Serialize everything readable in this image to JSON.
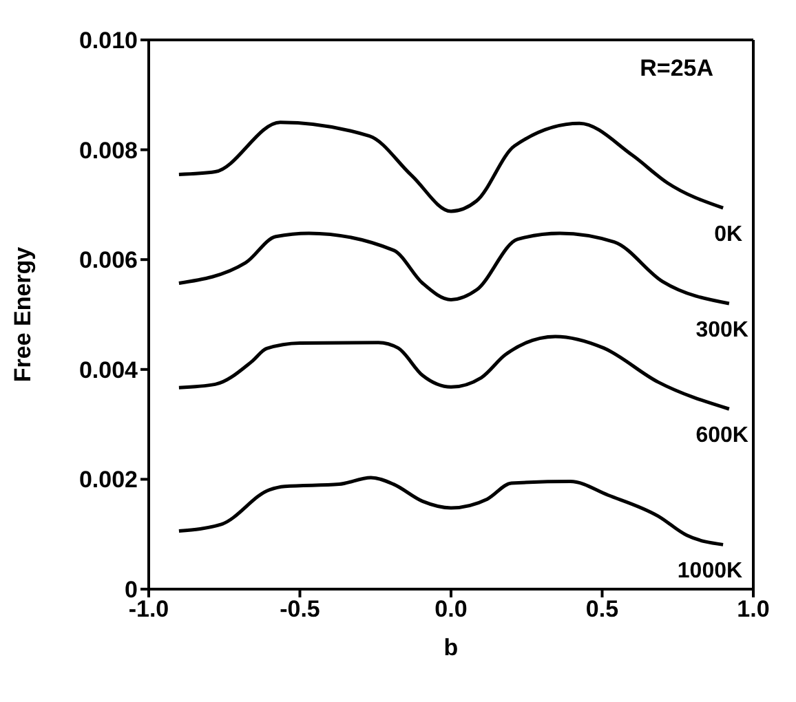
{
  "chart_data": {
    "type": "line",
    "xlabel": "b",
    "ylabel": "Free Energy",
    "annotations": [
      "R=25A"
    ],
    "xlim": [
      -1.0,
      1.0
    ],
    "xticks": [
      {
        "value": -1.0,
        "label": "-1.0"
      },
      {
        "value": -0.5,
        "label": "-0.5"
      },
      {
        "value": 0,
        "label": "0.0"
      },
      {
        "value": 0.5,
        "label": "0.5"
      },
      {
        "value": 1.0,
        "label": "1.0"
      }
    ],
    "ylim": [
      0,
      0.01
    ],
    "yticks": [
      0,
      {
        "value": 0.002,
        "label": "0.002"
      },
      {
        "value": 0.004,
        "label": "0.004"
      },
      {
        "value": 0.006,
        "label": "0.006"
      },
      {
        "value": 0.008,
        "label": "0.008"
      },
      {
        "value": 0.01,
        "label": "0.010"
      }
    ],
    "legend": false,
    "marker": "none",
    "line_style": "solid",
    "series": [
      {
        "name": "0K",
        "color": "#000000",
        "x": [
          -0.9,
          -0.78,
          -0.565,
          -0.27,
          -0.13,
          0,
          0.085,
          0.21,
          0.425,
          0.6,
          0.715,
          0.9
        ],
        "values": [
          0.00755,
          0.0076,
          0.0085,
          0.00825,
          0.00753,
          0.00688,
          0.00707,
          0.00807,
          0.00848,
          0.0079,
          0.0074,
          0.00694
        ]
      },
      {
        "name": "300K",
        "color": "#000000",
        "x": [
          -0.9,
          -0.68,
          -0.58,
          -0.47,
          -0.19,
          -0.094,
          0,
          0.085,
          0.22,
          0.36,
          0.54,
          0.7,
          0.92
        ],
        "values": [
          0.00557,
          0.00594,
          0.00642,
          0.00648,
          0.00617,
          0.00557,
          0.00527,
          0.00545,
          0.00637,
          0.00648,
          0.00632,
          0.0056,
          0.0052
        ]
      },
      {
        "name": "600K",
        "color": "#000000",
        "x": [
          -0.9,
          -0.78,
          -0.66,
          -0.61,
          -0.5,
          -0.24,
          -0.175,
          -0.094,
          0,
          0.1,
          0.18,
          0.345,
          0.505,
          0.685,
          0.92
        ],
        "values": [
          0.00367,
          0.00373,
          0.00414,
          0.00438,
          0.00448,
          0.00449,
          0.00439,
          0.00389,
          0.00368,
          0.00385,
          0.00427,
          0.0046,
          0.00439,
          0.00377,
          0.00328
        ]
      },
      {
        "name": "1000K",
        "color": "#000000",
        "x": [
          -0.9,
          -0.76,
          -0.6,
          -0.55,
          -0.37,
          -0.265,
          -0.19,
          -0.094,
          0,
          0.12,
          0.2,
          0.395,
          0.52,
          0.685,
          0.78,
          0.9
        ],
        "values": [
          0.00106,
          0.00118,
          0.00181,
          0.00187,
          0.00191,
          0.00203,
          0.00191,
          0.0016,
          0.00148,
          0.00164,
          0.00193,
          0.00196,
          0.00171,
          0.00133,
          0.00098,
          0.00081
        ]
      }
    ]
  }
}
